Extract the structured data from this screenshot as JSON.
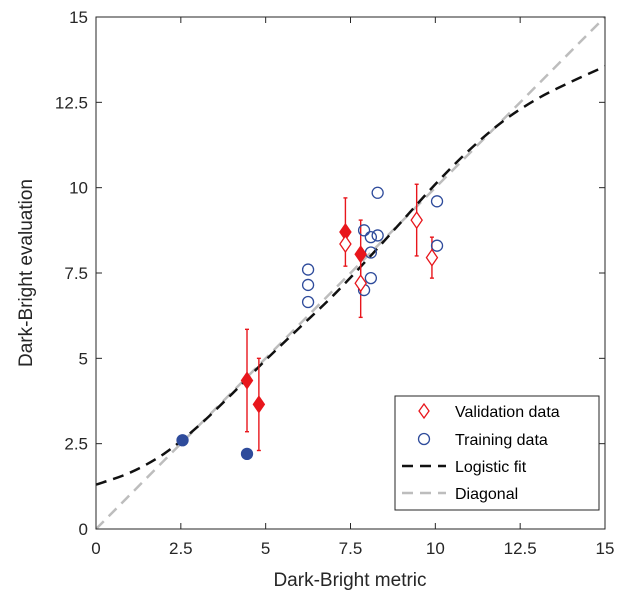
{
  "chart_data": {
    "type": "scatter",
    "title": "",
    "xlabel": "Dark-Bright metric",
    "ylabel": "Dark-Bright evaluation",
    "xlim": [
      0,
      15
    ],
    "ylim": [
      0,
      15
    ],
    "xticks": [
      0,
      2.5,
      5,
      7.5,
      10,
      12.5,
      15
    ],
    "yticks": [
      0,
      2.5,
      5,
      7.5,
      10,
      12.5,
      15
    ],
    "xtick_labels": [
      "0",
      "2.5",
      "5",
      "7.5",
      "10",
      "12.5",
      "15"
    ],
    "ytick_labels": [
      "0",
      "2.5",
      "5",
      "7.5",
      "10",
      "12.5",
      "15"
    ],
    "grid": false,
    "legend_position": "bottom-right",
    "legend": [
      {
        "label": "Validation data",
        "marker": "diamond-open",
        "color": "#e8161c"
      },
      {
        "label": "Training data",
        "marker": "circle-open",
        "color": "#2e4b9b"
      },
      {
        "label": "Logistic fit",
        "style": "dashed",
        "color": "#111111"
      },
      {
        "label": "Diagonal",
        "style": "dashed",
        "color": "#bdbdbd"
      }
    ],
    "series": [
      {
        "name": "Validation data",
        "color": "#e8161c",
        "points": [
          {
            "x": 4.45,
            "y": 4.35,
            "err": 1.5,
            "filled": true
          },
          {
            "x": 4.8,
            "y": 3.65,
            "err": 1.35,
            "filled": true
          },
          {
            "x": 7.35,
            "y": 8.7,
            "err": 1.0,
            "filled": true
          },
          {
            "x": 7.35,
            "y": 8.35,
            "err": 0.0,
            "filled": false
          },
          {
            "x": 7.8,
            "y": 8.05,
            "err": 1.0,
            "filled": true
          },
          {
            "x": 7.8,
            "y": 7.2,
            "err": 1.0,
            "filled": false
          },
          {
            "x": 9.45,
            "y": 9.05,
            "err": 1.05,
            "filled": false
          },
          {
            "x": 9.9,
            "y": 7.95,
            "err": 0.6,
            "filled": false
          }
        ]
      },
      {
        "name": "Training data",
        "color": "#2e4b9b",
        "points": [
          {
            "x": 2.55,
            "y": 2.6,
            "filled": true
          },
          {
            "x": 4.45,
            "y": 2.2,
            "filled": true
          },
          {
            "x": 6.25,
            "y": 7.6,
            "filled": false
          },
          {
            "x": 6.25,
            "y": 7.15,
            "filled": false
          },
          {
            "x": 6.25,
            "y": 6.65,
            "filled": false
          },
          {
            "x": 7.9,
            "y": 8.75,
            "filled": false
          },
          {
            "x": 7.9,
            "y": 7.0,
            "filled": false
          },
          {
            "x": 8.1,
            "y": 8.55,
            "filled": false
          },
          {
            "x": 8.1,
            "y": 8.1,
            "filled": false
          },
          {
            "x": 8.1,
            "y": 7.35,
            "filled": false
          },
          {
            "x": 8.3,
            "y": 8.6,
            "filled": false
          },
          {
            "x": 8.3,
            "y": 9.85,
            "filled": false
          },
          {
            "x": 10.05,
            "y": 9.6,
            "filled": false
          },
          {
            "x": 10.05,
            "y": 8.3,
            "filled": false
          }
        ]
      },
      {
        "name": "Logistic fit",
        "color": "#111111",
        "points": [
          {
            "x": 0,
            "y": 1.3
          },
          {
            "x": 1,
            "y": 1.65
          },
          {
            "x": 2,
            "y": 2.2
          },
          {
            "x": 3,
            "y": 3.0
          },
          {
            "x": 4,
            "y": 3.95
          },
          {
            "x": 5,
            "y": 4.95
          },
          {
            "x": 6,
            "y": 5.9
          },
          {
            "x": 7,
            "y": 6.85
          },
          {
            "x": 8,
            "y": 7.9
          },
          {
            "x": 9,
            "y": 9.0
          },
          {
            "x": 10,
            "y": 10.1
          },
          {
            "x": 11,
            "y": 11.1
          },
          {
            "x": 12,
            "y": 11.95
          },
          {
            "x": 13,
            "y": 12.6
          },
          {
            "x": 14,
            "y": 13.1
          },
          {
            "x": 15,
            "y": 13.55
          }
        ]
      },
      {
        "name": "Diagonal",
        "color": "#bdbdbd",
        "points": [
          {
            "x": 0,
            "y": 0
          },
          {
            "x": 15,
            "y": 15
          }
        ]
      }
    ]
  }
}
